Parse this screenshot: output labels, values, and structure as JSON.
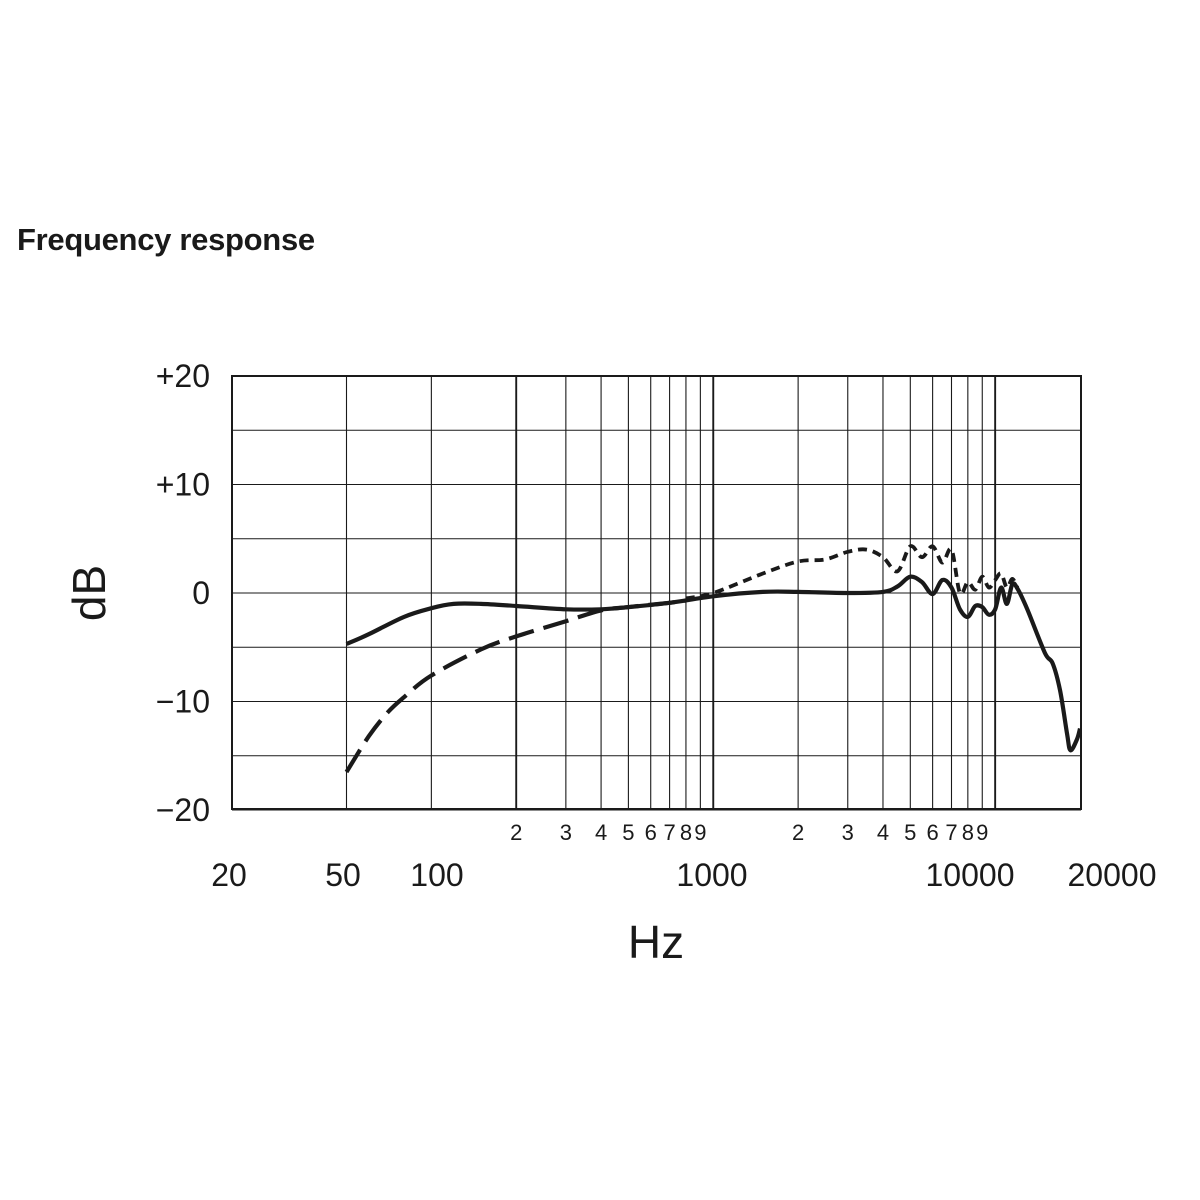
{
  "chart_data": {
    "type": "line",
    "title": "Frequency response",
    "xlabel": "Hz",
    "ylabel": "dB",
    "xscale": "log",
    "xlim": [
      50,
      20000
    ],
    "ylim": [
      -20,
      20
    ],
    "y_ticks": [
      "+20",
      "+10",
      "0",
      "−10",
      "−20"
    ],
    "y_tick_values": [
      20,
      10,
      0,
      -10,
      -20
    ],
    "x_major_ticks": [
      "20",
      "50",
      "100",
      "1000",
      "10000",
      "20000"
    ],
    "x_minor_tick_labels": [
      "2",
      "3",
      "4",
      "5",
      "6",
      "7",
      "8",
      "9"
    ],
    "grid": true,
    "series": [
      {
        "style": "solid",
        "points": [
          [
            50,
            -4.7
          ],
          [
            60,
            -3.8
          ],
          [
            80,
            -2.2
          ],
          [
            100,
            -1.4
          ],
          [
            120,
            -1.0
          ],
          [
            150,
            -1.0
          ],
          [
            200,
            -1.2
          ],
          [
            300,
            -1.5
          ],
          [
            400,
            -1.5
          ],
          [
            500,
            -1.3
          ],
          [
            700,
            -0.9
          ],
          [
            1000,
            -0.3
          ],
          [
            1500,
            0.1
          ],
          [
            2000,
            0.1
          ],
          [
            3000,
            0.0
          ],
          [
            4000,
            0.1
          ],
          [
            4500,
            0.6
          ],
          [
            5000,
            1.5
          ],
          [
            5500,
            1.0
          ],
          [
            6000,
            -0.1
          ],
          [
            6500,
            1.2
          ],
          [
            7000,
            0.5
          ],
          [
            7500,
            -1.5
          ],
          [
            8000,
            -2.2
          ],
          [
            8500,
            -1.2
          ],
          [
            9000,
            -1.3
          ],
          [
            9500,
            -2.0
          ],
          [
            10000,
            -1.5
          ],
          [
            10500,
            0.5
          ],
          [
            11000,
            -1.0
          ],
          [
            11500,
            0.8
          ],
          [
            12000,
            0.4
          ],
          [
            13000,
            -1.5
          ],
          [
            15000,
            -5.5
          ],
          [
            16000,
            -6.5
          ],
          [
            17000,
            -9.0
          ],
          [
            18000,
            -13.0
          ],
          [
            18500,
            -14.5
          ],
          [
            19500,
            -13.5
          ],
          [
            20000,
            -12.5
          ]
        ]
      },
      {
        "style": "dashed",
        "points": [
          [
            50,
            -16.5
          ],
          [
            60,
            -13.2
          ],
          [
            70,
            -11.0
          ],
          [
            80,
            -9.6
          ],
          [
            100,
            -7.6
          ],
          [
            150,
            -5.2
          ],
          [
            200,
            -4.0
          ],
          [
            300,
            -2.6
          ],
          [
            400,
            -1.6
          ],
          [
            500,
            -1.3
          ],
          [
            700,
            -0.9
          ],
          [
            800,
            -0.7
          ]
        ]
      },
      {
        "style": "dotted",
        "points": [
          [
            800,
            -0.5
          ],
          [
            1000,
            0.0
          ],
          [
            1500,
            1.8
          ],
          [
            2000,
            2.9
          ],
          [
            2500,
            3.1
          ],
          [
            3000,
            3.8
          ],
          [
            3500,
            4.0
          ],
          [
            4000,
            3.3
          ],
          [
            4500,
            2.0
          ],
          [
            5000,
            4.3
          ],
          [
            5500,
            3.3
          ],
          [
            6000,
            4.3
          ],
          [
            6500,
            2.8
          ],
          [
            7000,
            4.0
          ],
          [
            7500,
            0.0
          ],
          [
            8000,
            1.0
          ],
          [
            8500,
            0.3
          ],
          [
            9000,
            1.5
          ],
          [
            9500,
            0.5
          ],
          [
            10000,
            1.2
          ],
          [
            10500,
            1.8
          ],
          [
            11000,
            0.5
          ],
          [
            11500,
            1.3
          ],
          [
            12000,
            0.5
          ]
        ]
      }
    ]
  }
}
